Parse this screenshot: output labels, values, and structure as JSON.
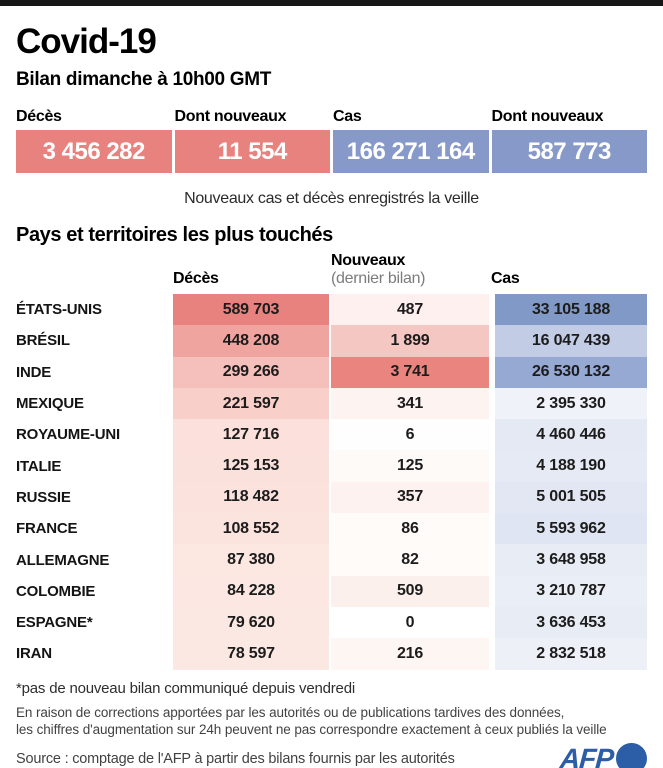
{
  "header": {
    "title": "Covid-19",
    "subtitle": "Bilan dimanche à 10h00 GMT"
  },
  "stats": {
    "boxes": [
      {
        "label": "Décès",
        "value": "3 456 282",
        "color": "#e8827f"
      },
      {
        "label": "Dont nouveaux",
        "value": "11 554",
        "color": "#e8827f"
      },
      {
        "label": "Cas",
        "value": "166 271 164",
        "color": "#8699c9"
      },
      {
        "label": "Dont nouveaux",
        "value": "587 773",
        "color": "#8699c9"
      }
    ],
    "note": "Nouveaux cas et décès enregistrés la veille"
  },
  "table": {
    "section_title": "Pays et territoires les plus touchés",
    "columns": {
      "deces": "Décès",
      "nouveaux": "Nouveaux",
      "nouveaux_sub": "(dernier bilan)",
      "cas": "Cas"
    },
    "rows": [
      {
        "country": "ÉTATS-UNIS",
        "deces": "589 703",
        "deces_color": "#e8827e",
        "nouveaux": "487",
        "nouveaux_color": "#fdf0ee",
        "cas": "33 105 188",
        "cas_color": "#8099c7"
      },
      {
        "country": "BRÉSIL",
        "deces": "448 208",
        "deces_color": "#efa49f",
        "nouveaux": "1 899",
        "nouveaux_color": "#f4c7c2",
        "cas": "16 047 439",
        "cas_color": "#c2cce5"
      },
      {
        "country": "INDE",
        "deces": "299 266",
        "deces_color": "#f5c0bb",
        "nouveaux": "3 741",
        "nouveaux_color": "#e9847f",
        "cas": "26 530 132",
        "cas_color": "#96a9d3"
      },
      {
        "country": "MEXIQUE",
        "deces": "221 597",
        "deces_color": "#f8cfc9",
        "nouveaux": "341",
        "nouveaux_color": "#fdf3f0",
        "cas": "2 395 330",
        "cas_color": "#eff2f8"
      },
      {
        "country": "ROYAUME-UNI",
        "deces": "127 716",
        "deces_color": "#fbe0db",
        "nouveaux": "6",
        "nouveaux_color": "#fffefe",
        "cas": "4 460 446",
        "cas_color": "#e4e9f4"
      },
      {
        "country": "ITALIE",
        "deces": "125 153",
        "deces_color": "#fbe1dc",
        "nouveaux": "125",
        "nouveaux_color": "#fefaf8",
        "cas": "4 188 190",
        "cas_color": "#e5eaf4"
      },
      {
        "country": "RUSSIE",
        "deces": "118 482",
        "deces_color": "#fbe2dd",
        "nouveaux": "357",
        "nouveaux_color": "#fdf2f0",
        "cas": "5 001 505",
        "cas_color": "#e2e7f3"
      },
      {
        "country": "FRANCE",
        "deces": "108 552",
        "deces_color": "#fbe3de",
        "nouveaux": "86",
        "nouveaux_color": "#fefbf9",
        "cas": "5 593 962",
        "cas_color": "#dfe5f2"
      },
      {
        "country": "ALLEMAGNE",
        "deces": "87 380",
        "deces_color": "#fce7e1",
        "nouveaux": "82",
        "nouveaux_color": "#fefbf9",
        "cas": "3 648 958",
        "cas_color": "#e7ecf5"
      },
      {
        "country": "COLOMBIE",
        "deces": "84 228",
        "deces_color": "#fce7e2",
        "nouveaux": "509",
        "nouveaux_color": "#fcf0ed",
        "cas": "3 210 787",
        "cas_color": "#eaeef6"
      },
      {
        "country": "ESPAGNE*",
        "deces": "79 620",
        "deces_color": "#fce8e3",
        "nouveaux": "0",
        "nouveaux_color": "#ffffff",
        "cas": "3 636 453",
        "cas_color": "#e7ecf5"
      },
      {
        "country": "IRAN",
        "deces": "78 597",
        "deces_color": "#fce8e3",
        "nouveaux": "216",
        "nouveaux_color": "#fef6f3",
        "cas": "2 832 518",
        "cas_color": "#edf0f7"
      }
    ]
  },
  "footer": {
    "footnote": "*pas de nouveau bilan communiqué depuis vendredi",
    "disclaimer_line1": "En raison de corrections apportées par les autorités ou de publications tardives des données,",
    "disclaimer_line2": "les chiffres d'augmentation sur 24h peuvent ne pas correspondre exactement à ceux publiés la veille",
    "source": "Source : comptage de l'AFP à partir des bilans fournis par les autorités",
    "logo_text": "AFP",
    "logo_color": "#2b5ea7"
  },
  "chart_data": {
    "type": "table",
    "title": "Covid-19 — Bilan dimanche à 10h00 GMT",
    "totals": {
      "deces": 3456282,
      "deces_nouveaux": 11554,
      "cas": 166271164,
      "cas_nouveaux": 587773
    },
    "columns": [
      "Pays",
      "Décès",
      "Nouveaux (dernier bilan)",
      "Cas"
    ],
    "rows": [
      [
        "ÉTATS-UNIS",
        589703,
        487,
        33105188
      ],
      [
        "BRÉSIL",
        448208,
        1899,
        16047439
      ],
      [
        "INDE",
        299266,
        3741,
        26530132
      ],
      [
        "MEXIQUE",
        221597,
        341,
        2395330
      ],
      [
        "ROYAUME-UNI",
        127716,
        6,
        4460446
      ],
      [
        "ITALIE",
        125153,
        125,
        4188190
      ],
      [
        "RUSSIE",
        118482,
        357,
        5001505
      ],
      [
        "FRANCE",
        108552,
        86,
        5593962
      ],
      [
        "ALLEMAGNE",
        87380,
        82,
        3648958
      ],
      [
        "COLOMBIE",
        84228,
        509,
        3210787
      ],
      [
        "ESPAGNE*",
        79620,
        0,
        3636453
      ],
      [
        "IRAN",
        78597,
        216,
        2832518
      ]
    ],
    "legend_note": "Cell shading intensity is proportional to value: reds for deaths/new deaths, blues for cases",
    "accent_colors": {
      "red": "#e8827f",
      "blue": "#8699c9"
    }
  }
}
